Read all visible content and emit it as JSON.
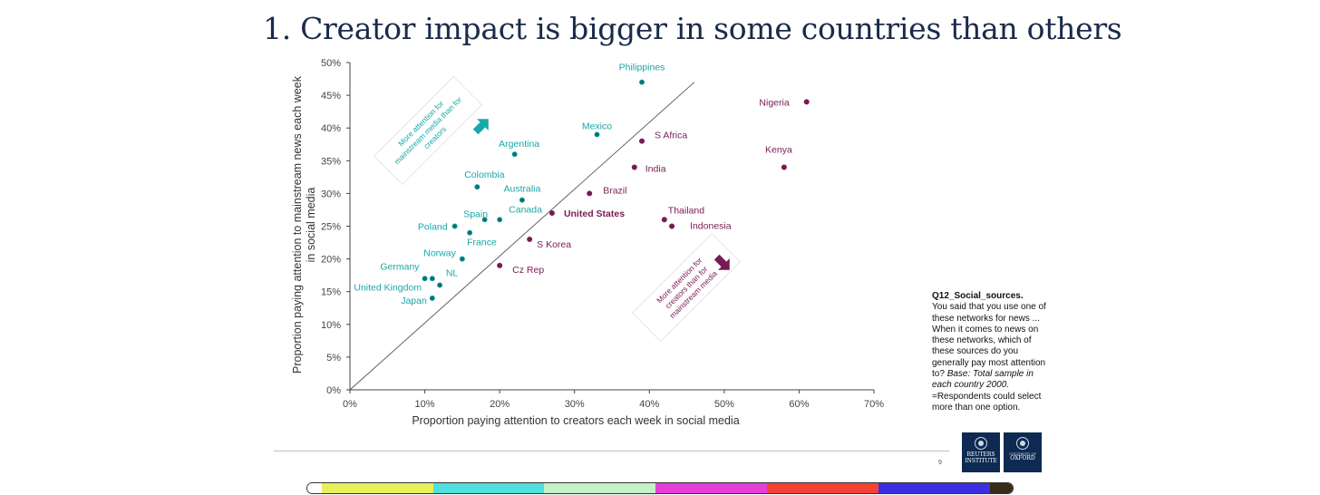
{
  "slide": {
    "title": "1. Creator impact is bigger in some countries than others",
    "page_number": "9"
  },
  "chart_data": {
    "type": "scatter",
    "xlabel": "Proportion paying attention to creators each week in social media",
    "ylabel": "Proportion paying attention to mainstream news each week in social media",
    "xlim": [
      0,
      70
    ],
    "ylim": [
      0,
      50
    ],
    "x_ticks": [
      "0%",
      "10%",
      "20%",
      "30%",
      "40%",
      "50%",
      "60%",
      "70%"
    ],
    "y_ticks": [
      "0%",
      "5%",
      "10%",
      "15%",
      "20%",
      "25%",
      "30%",
      "35%",
      "40%",
      "45%",
      "50%"
    ],
    "diagonal": [
      [
        0,
        0
      ],
      [
        46,
        47
      ]
    ],
    "colors": {
      "mainstream": "#1aa7a7",
      "creators": "#7a1a55",
      "axis": "#444444"
    },
    "points": [
      {
        "label": "Philippines",
        "x": 39,
        "y": 47,
        "group": "mainstream",
        "lx": 0,
        "ly": -13,
        "anchor": "middle"
      },
      {
        "label": "Mexico",
        "x": 33,
        "y": 39,
        "group": "mainstream",
        "lx": 0,
        "ly": -6,
        "anchor": "middle"
      },
      {
        "label": "Argentina",
        "x": 22,
        "y": 36,
        "group": "mainstream",
        "lx": 5,
        "ly": -8,
        "anchor": "middle"
      },
      {
        "label": "Colombia",
        "x": 17,
        "y": 31,
        "group": "mainstream",
        "lx": 8,
        "ly": -10,
        "anchor": "middle"
      },
      {
        "label": "Australia",
        "x": 23,
        "y": 29,
        "group": "mainstream",
        "lx": 0,
        "ly": -9,
        "anchor": "middle"
      },
      {
        "label": "Canada",
        "x": 20,
        "y": 26,
        "group": "mainstream",
        "lx": 10,
        "ly": -8,
        "anchor": "start"
      },
      {
        "label": "Spain",
        "x": 18,
        "y": 26,
        "group": "mainstream",
        "lx": -10,
        "ly": -3,
        "anchor": "middle"
      },
      {
        "label": "Poland",
        "x": 14,
        "y": 25,
        "group": "mainstream",
        "lx": -8,
        "ly": 4,
        "anchor": "end"
      },
      {
        "label": "France",
        "x": 16,
        "y": 24,
        "group": "mainstream",
        "lx": -3,
        "ly": 14,
        "anchor": "start"
      },
      {
        "label": "Norway",
        "x": 15,
        "y": 20,
        "group": "mainstream",
        "lx": -7,
        "ly": -3,
        "anchor": "end"
      },
      {
        "label": "Germany",
        "x": 10,
        "y": 17,
        "group": "mainstream",
        "lx": -6,
        "ly": -10,
        "anchor": "end"
      },
      {
        "label": "NL",
        "x": 11,
        "y": 17,
        "group": "mainstream",
        "lx": 15,
        "ly": -3,
        "anchor": "start"
      },
      {
        "label": "United Kingdom",
        "x": 12,
        "y": 16,
        "group": "mainstream",
        "lx": -20,
        "ly": 6,
        "anchor": "end"
      },
      {
        "label": "Japan",
        "x": 11,
        "y": 14,
        "group": "mainstream",
        "lx": -6,
        "ly": 6,
        "anchor": "end"
      },
      {
        "label": "Nigeria",
        "x": 61,
        "y": 44,
        "group": "creators",
        "lx": -19,
        "ly": 4,
        "anchor": "end"
      },
      {
        "label": "Kenya",
        "x": 58,
        "y": 34,
        "group": "creators",
        "lx": -6,
        "ly": -16,
        "anchor": "middle"
      },
      {
        "label": "S Africa",
        "x": 39,
        "y": 38,
        "group": "creators",
        "lx": 14,
        "ly": -3,
        "anchor": "start"
      },
      {
        "label": "India",
        "x": 38,
        "y": 34,
        "group": "creators",
        "lx": 12,
        "ly": 5,
        "anchor": "start"
      },
      {
        "label": "Brazil",
        "x": 32,
        "y": 30,
        "group": "creators",
        "lx": 15,
        "ly": 0,
        "anchor": "start"
      },
      {
        "label": "United States",
        "x": 27,
        "y": 27,
        "group": "creators",
        "lx": 13,
        "ly": 4,
        "anchor": "start",
        "bold": true
      },
      {
        "label": "Thailand",
        "x": 42,
        "y": 26,
        "group": "creators",
        "lx": 4,
        "ly": -7,
        "anchor": "start"
      },
      {
        "label": "Indonesia",
        "x": 43,
        "y": 25,
        "group": "creators",
        "lx": 20,
        "ly": 3,
        "anchor": "start"
      },
      {
        "label": "S Korea",
        "x": 24,
        "y": 23,
        "group": "creators",
        "lx": 8,
        "ly": 9,
        "anchor": "start"
      },
      {
        "label": "Cz Rep",
        "x": 20,
        "y": 19,
        "group": "creators",
        "lx": 14,
        "ly": 8,
        "anchor": "start"
      }
    ],
    "annotations": [
      {
        "text": [
          "More attention for",
          "mainstream media than for",
          "creators"
        ],
        "group": "mainstream",
        "arrow": "up-right"
      },
      {
        "text": [
          "More attention for",
          "creators than for",
          "mainstream media"
        ],
        "group": "creators",
        "arrow": "down-right"
      }
    ]
  },
  "note": {
    "heading": "Q12_Social_sources",
    "body": "You said that you use one of these networks for news ... When it comes to news on these networks, which of these sources do you generally pay most attention to?",
    "base": "Base: Total sample in each country  2000.",
    "footnote": "=Respondents could select more than one option."
  },
  "logos": {
    "reuters_line1": "REUTERS",
    "reuters_line2": "INSTITUTE",
    "oxford_line1": "UNIVERSITY OF",
    "oxford_line2": "OXFORD"
  },
  "color_bar": [
    "#e9ef5a",
    "#4fe0dd",
    "#c2f2c5",
    "#e63fd6",
    "#f24336",
    "#3b2fe0",
    "#3a2a18"
  ]
}
